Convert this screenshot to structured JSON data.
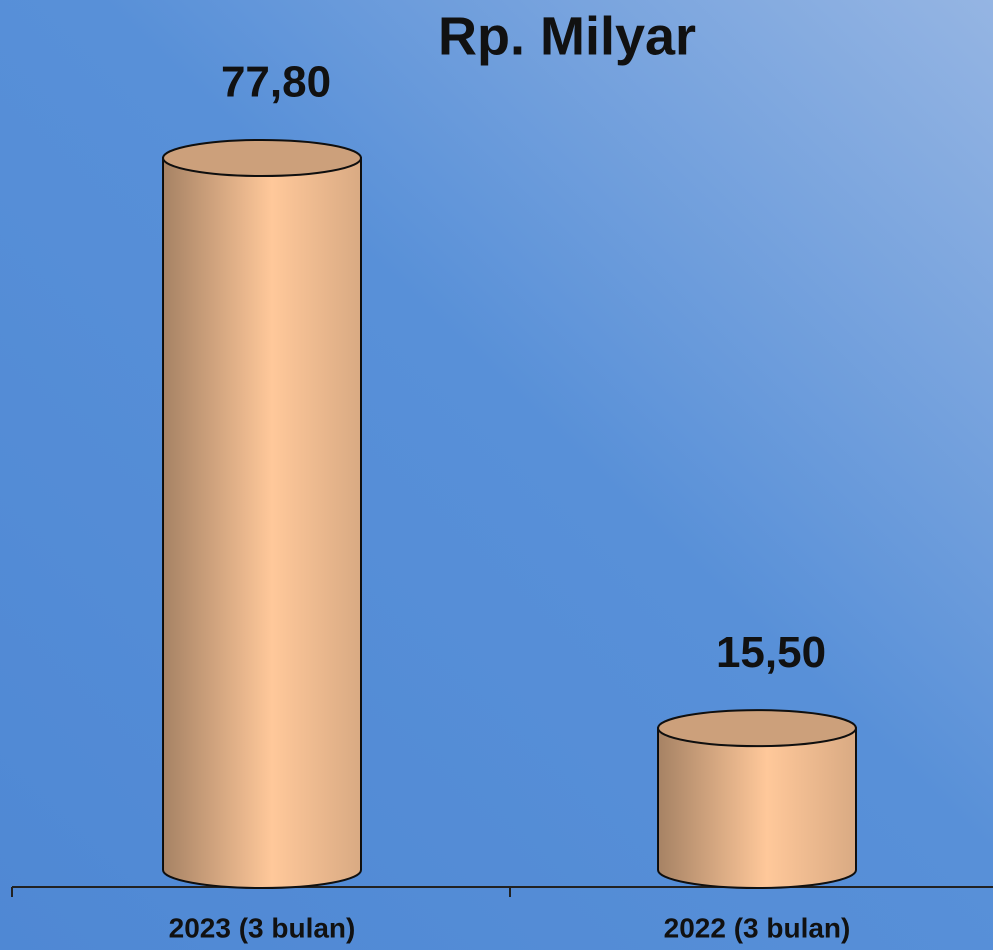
{
  "chart_data": {
    "type": "bar",
    "title": "Rp. Milyar",
    "categories": [
      "2023 (3 bulan)",
      "2022 (3 bulan)"
    ],
    "values": [
      77.8,
      15.5
    ],
    "value_labels": [
      "77,80",
      "15,50"
    ],
    "color": "#ffc89a"
  }
}
